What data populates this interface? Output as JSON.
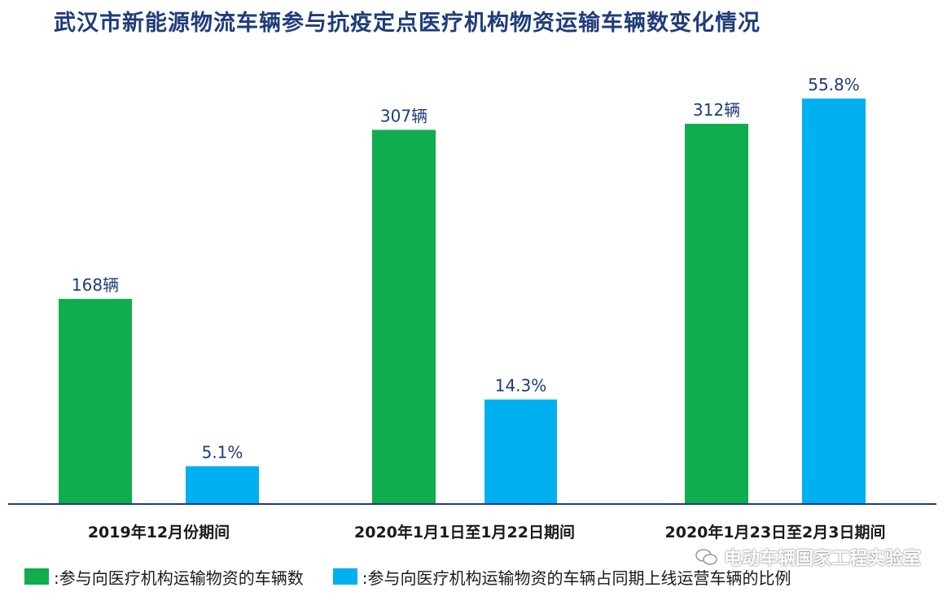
{
  "chart_data": {
    "type": "bar",
    "title": "武汉市新能源物流车辆参与抗疫定点医疗机构物资运输车辆数变化情况",
    "categories": [
      "2019年12月份期间",
      "2020年1月1日至1月22日期间",
      "2020年1月23日至2月3日期间"
    ],
    "series": [
      {
        "name": ":参与向医疗机构运输物资的车辆数",
        "values": [
          168,
          307,
          312
        ],
        "labels": [
          "168辆",
          "307辆",
          "312辆"
        ],
        "color": "#0fad4e"
      },
      {
        "name": ":参与向医疗机构运输物资的车辆占同期上线运营车辆的比例",
        "values": [
          5.1,
          14.3,
          55.8
        ],
        "labels": [
          "5.1%",
          "14.3%",
          "55.8%"
        ],
        "color": "#00b0f0"
      }
    ],
    "legend_position": "bottom",
    "grid": false,
    "axis_color": "#1f3d7a"
  },
  "watermark": {
    "text": "电动车辆国家工程实验室",
    "icon": "wechat-icon"
  }
}
